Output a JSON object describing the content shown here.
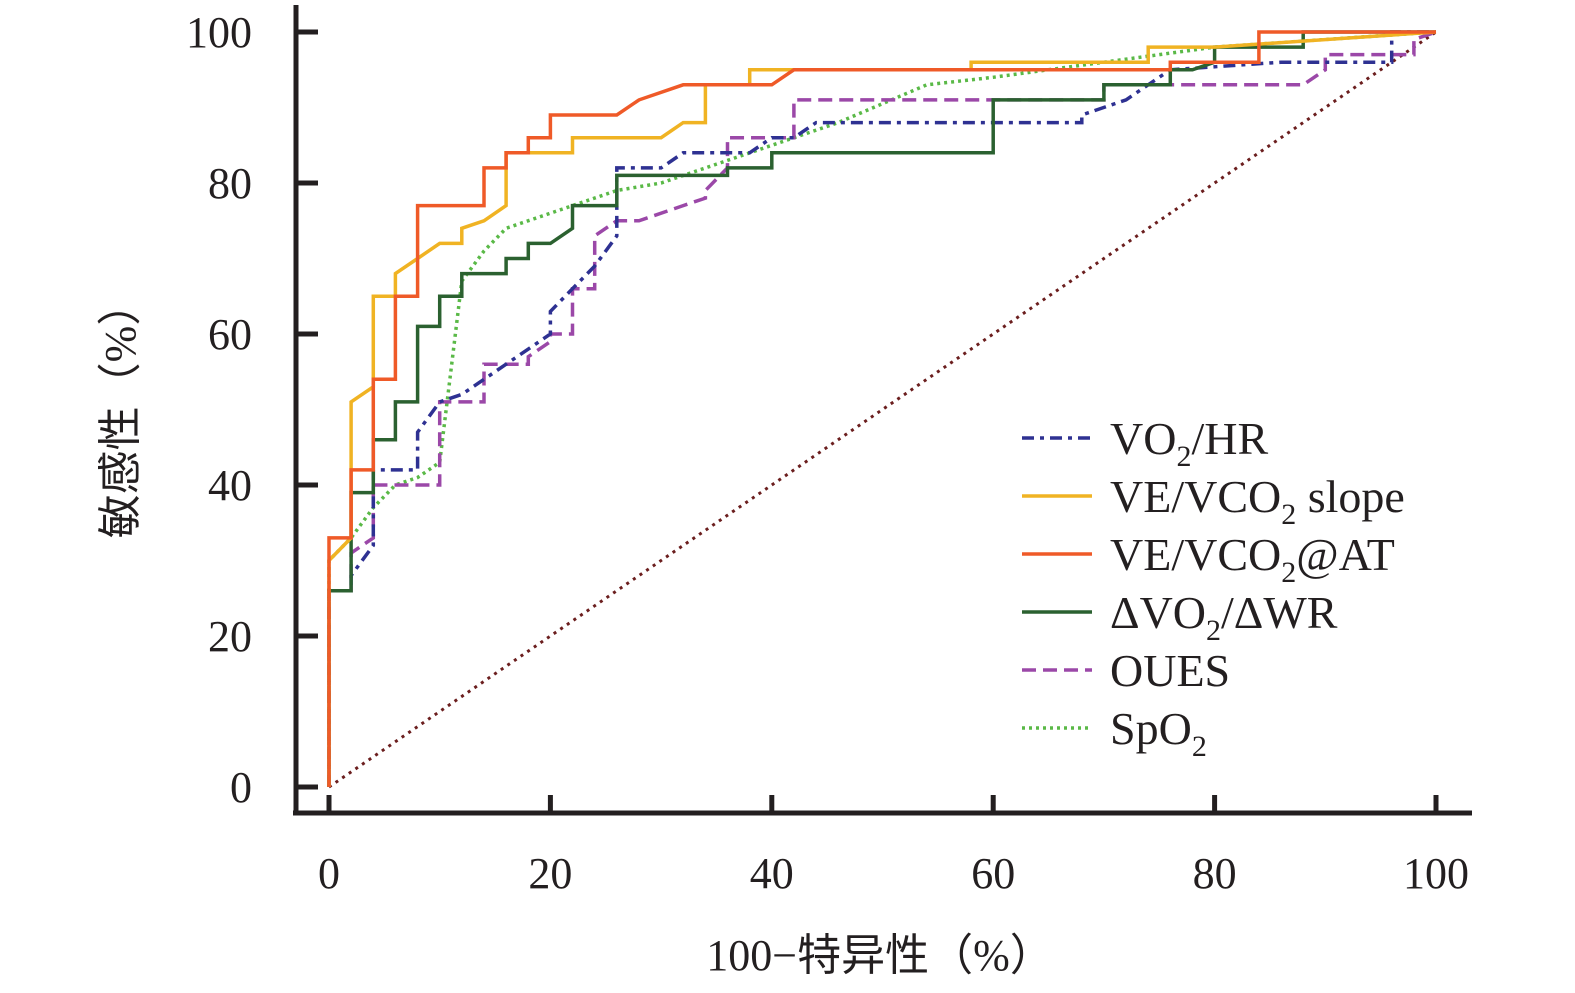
{
  "chart_data": {
    "type": "line",
    "title": "",
    "xlabel": "100−特异性（%）",
    "ylabel": "敏感性（%）",
    "xlim": [
      0,
      100
    ],
    "ylim": [
      0,
      100
    ],
    "xticks": [
      "0",
      "20",
      "40",
      "60",
      "80",
      "100"
    ],
    "yticks": [
      "0",
      "20",
      "40",
      "60",
      "80",
      "100"
    ],
    "grid": false,
    "legend_position": "bottom-right",
    "reference_line": {
      "name": "reference",
      "color": "#6b1e1e",
      "style": "dotted",
      "x": [
        0,
        100
      ],
      "y": [
        0,
        100
      ]
    },
    "series": [
      {
        "name": "VO2/HR",
        "label_main": "VO",
        "label_sub": "2",
        "label_tail": "/HR",
        "color": "#2e3192",
        "style": "dashdot",
        "x": [
          0,
          0,
          2,
          2,
          4,
          4,
          8,
          8,
          10,
          12,
          14,
          16,
          18,
          20,
          20,
          22,
          24,
          26,
          26,
          30,
          32,
          38,
          40,
          42,
          44,
          60,
          68,
          68,
          72,
          74,
          76,
          86,
          94,
          96,
          96,
          100
        ],
        "y": [
          0,
          26,
          26,
          28,
          32,
          42,
          42,
          47,
          51,
          52,
          54,
          56,
          58,
          60,
          63,
          66,
          69,
          73,
          82,
          82,
          84,
          84,
          86,
          86,
          88,
          88,
          88,
          89,
          91,
          93,
          95,
          96,
          96,
          96,
          100,
          100
        ]
      },
      {
        "name": "VE/VCO2 slope",
        "label_main": "VE/VCO",
        "label_sub": "2",
        "label_tail": " slope",
        "color": "#f0b323",
        "style": "solid",
        "x": [
          0,
          0,
          2,
          2,
          4,
          4,
          6,
          6,
          8,
          10,
          12,
          12,
          14,
          16,
          16,
          18,
          18,
          20,
          22,
          22,
          30,
          32,
          34,
          34,
          38,
          38,
          40,
          42,
          58,
          58,
          74,
          74,
          80,
          80,
          100
        ],
        "y": [
          0,
          30,
          33,
          51,
          53,
          65,
          65,
          68,
          70,
          72,
          72,
          74,
          75,
          77,
          84,
          84,
          84,
          84,
          84,
          86,
          86,
          88,
          88,
          93,
          93,
          95,
          95,
          95,
          95,
          96,
          96,
          98,
          98,
          98,
          100
        ]
      },
      {
        "name": "VE/VCO2@AT",
        "label_main": "VE/VCO",
        "label_sub": "2",
        "label_tail": "@AT",
        "color": "#ef5a28",
        "style": "solid",
        "x": [
          0,
          0,
          2,
          2,
          4,
          4,
          6,
          6,
          8,
          8,
          14,
          14,
          16,
          16,
          18,
          18,
          20,
          20,
          26,
          28,
          32,
          40,
          42,
          76,
          76,
          78,
          84,
          84,
          88,
          100
        ],
        "y": [
          0,
          33,
          33,
          42,
          42,
          54,
          54,
          65,
          65,
          77,
          77,
          82,
          82,
          84,
          84,
          86,
          86,
          89,
          89,
          91,
          93,
          93,
          95,
          95,
          96,
          96,
          96,
          100,
          100,
          100
        ]
      },
      {
        "name": "ΔVO2/ΔWR",
        "label_main": "ΔVO",
        "label_sub": "2",
        "label_tail": "/ΔWR",
        "color": "#2b6130",
        "style": "solid",
        "x": [
          0,
          0,
          2,
          2,
          4,
          4,
          6,
          6,
          8,
          8,
          10,
          10,
          12,
          12,
          16,
          16,
          18,
          18,
          20,
          20,
          22,
          22,
          26,
          26,
          36,
          36,
          40,
          40,
          60,
          60,
          70,
          70,
          76,
          76,
          78,
          80,
          80,
          88,
          88,
          100
        ],
        "y": [
          0,
          26,
          26,
          39,
          39,
          46,
          46,
          51,
          51,
          61,
          61,
          65,
          65,
          68,
          68,
          70,
          70,
          72,
          72,
          72,
          74,
          77,
          77,
          81,
          81,
          82,
          82,
          84,
          84,
          91,
          91,
          93,
          93,
          95,
          95,
          96,
          98,
          98,
          100,
          100
        ]
      },
      {
        "name": "OUES",
        "label_main": "OUES",
        "label_sub": "",
        "label_tail": "",
        "color": "#9b48a8",
        "style": "dashed",
        "x": [
          0,
          0,
          2,
          2,
          4,
          4,
          10,
          10,
          14,
          14,
          18,
          18,
          20,
          20,
          22,
          22,
          24,
          24,
          26,
          28,
          32,
          34,
          34,
          36,
          36,
          42,
          42,
          70,
          70,
          74,
          76,
          82,
          82,
          88,
          90,
          90,
          96,
          98,
          98,
          100
        ],
        "y": [
          0,
          26,
          26,
          31,
          33,
          40,
          40,
          51,
          51,
          56,
          56,
          57,
          59,
          60,
          60,
          66,
          66,
          73,
          75,
          75,
          77,
          78,
          79,
          82,
          86,
          86,
          91,
          91,
          93,
          93,
          93,
          93,
          93,
          93,
          95,
          97,
          97,
          97,
          99,
          100
        ]
      },
      {
        "name": "SpO2",
        "label_main": "SpO",
        "label_sub": "2",
        "label_tail": "",
        "color": "#5ab947",
        "style": "dotted",
        "x": [
          0,
          0,
          2,
          4,
          6,
          8,
          10,
          11,
          12,
          14,
          16,
          20,
          26,
          30,
          36,
          40,
          46,
          54,
          60,
          70,
          80,
          90,
          100
        ],
        "y": [
          0,
          30,
          33,
          37,
          40,
          41,
          43,
          55,
          67,
          71,
          74,
          76,
          79,
          80,
          83,
          85,
          88,
          93,
          94,
          96,
          98,
          99,
          100
        ]
      }
    ]
  }
}
